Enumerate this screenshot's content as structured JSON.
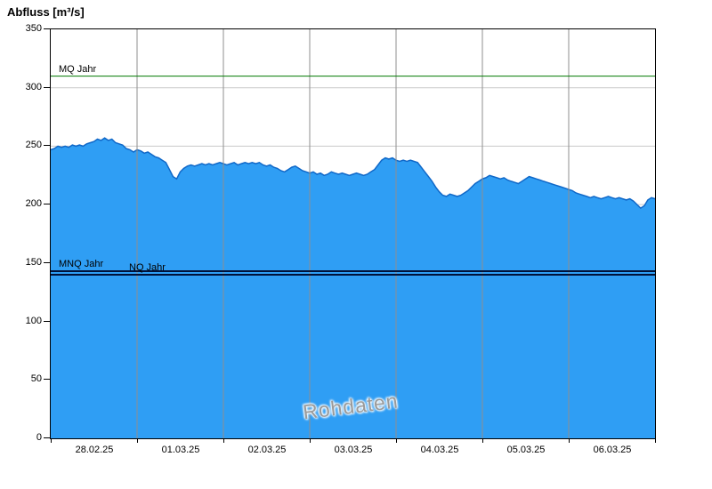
{
  "header": {
    "title": "Abfluss [m³/s]"
  },
  "chart_data": {
    "type": "area",
    "title": "Abfluss [m³/s]",
    "ylabel": "Abfluss [m³/s]",
    "xlabel": "",
    "ylim": [
      0,
      350
    ],
    "y_ticks": [
      0,
      50,
      100,
      150,
      200,
      250,
      300,
      350
    ],
    "x_tick_labels": [
      "28.02.25",
      "01.03.25",
      "02.03.25",
      "03.03.25",
      "04.03.25",
      "05.03.25",
      "06.03.25"
    ],
    "x_range_hours": 168,
    "x_start_hour": 0,
    "x_step_hours": 1,
    "x_unit": "hours since 28.02.25 00:00",
    "series_name": "Abfluss Rohdaten",
    "values": [
      247,
      248,
      250,
      249,
      250,
      249,
      251,
      250,
      251,
      250,
      252,
      253,
      254,
      256,
      255,
      257,
      255,
      256,
      253,
      252,
      251,
      248,
      247,
      245,
      247,
      246,
      244,
      245,
      243,
      241,
      240,
      238,
      236,
      230,
      224,
      222,
      228,
      231,
      233,
      234,
      233,
      234,
      235,
      234,
      235,
      234,
      235,
      236,
      235,
      234,
      235,
      236,
      234,
      235,
      236,
      235,
      236,
      235,
      236,
      234,
      233,
      234,
      232,
      231,
      229,
      228,
      230,
      232,
      233,
      231,
      229,
      228,
      227,
      228,
      226,
      227,
      225,
      226,
      228,
      227,
      226,
      227,
      226,
      225,
      226,
      227,
      226,
      225,
      226,
      228,
      230,
      234,
      238,
      240,
      239,
      240,
      238,
      237,
      238,
      237,
      238,
      237,
      236,
      232,
      228,
      224,
      220,
      215,
      211,
      208,
      207,
      209,
      208,
      207,
      208,
      210,
      212,
      215,
      218,
      220,
      222,
      223,
      225,
      224,
      223,
      222,
      223,
      221,
      220,
      219,
      218,
      220,
      222,
      224,
      223,
      222,
      221,
      220,
      219,
      218,
      217,
      216,
      215,
      214,
      213,
      212,
      210,
      209,
      208,
      207,
      206,
      207,
      206,
      205,
      206,
      207,
      206,
      205,
      206,
      205,
      204,
      205,
      203,
      200,
      197,
      199,
      204,
      206,
      205
    ],
    "reference_lines": [
      {
        "label": "MQ Jahr",
        "value": 310,
        "color": "#007a00",
        "width": 1,
        "label_offset_x": 9
      },
      {
        "label": "MNQ Jahr",
        "value": 143,
        "color": "#00123a",
        "width": 2,
        "label_offset_x": 9
      },
      {
        "label": "NQ Jahr",
        "value": 140,
        "color": "#00123a",
        "width": 2,
        "label_offset_x": 88
      }
    ],
    "watermark": "Rohdaten",
    "grid": true,
    "legend_position": "none",
    "colors": {
      "area_fill": "#2f9ef4",
      "area_edge": "#1068c8",
      "h_grid": "#c9c9c9",
      "v_grid": "#8f8f8f",
      "axis": "#000000"
    }
  }
}
